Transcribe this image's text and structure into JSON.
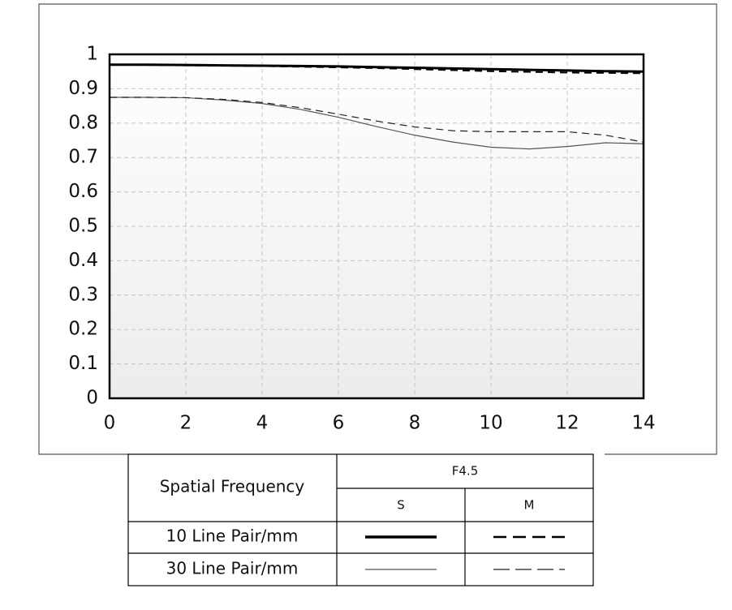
{
  "chart_data": {
    "type": "line",
    "x": [
      0,
      1,
      2,
      3,
      4,
      5,
      6,
      7,
      8,
      9,
      10,
      11,
      12,
      13,
      14
    ],
    "series": [
      {
        "color": "#000000",
        "width": 3,
        "dash": "none",
        "values": [
          0.97,
          0.97,
          0.969,
          0.968,
          0.967,
          0.966,
          0.965,
          0.963,
          0.961,
          0.959,
          0.957,
          0.955,
          0.953,
          0.951,
          0.95
        ]
      },
      {
        "color": "#000000",
        "width": 2,
        "dash": "9 6",
        "values": [
          0.97,
          0.969,
          0.968,
          0.967,
          0.966,
          0.964,
          0.962,
          0.96,
          0.957,
          0.954,
          0.951,
          0.949,
          0.947,
          0.946,
          0.945
        ]
      },
      {
        "color": "#555555",
        "width": 1.2,
        "dash": "none",
        "values": [
          0.875,
          0.875,
          0.874,
          0.867,
          0.857,
          0.84,
          0.817,
          0.79,
          0.765,
          0.745,
          0.73,
          0.725,
          0.732,
          0.743,
          0.74
        ]
      },
      {
        "color": "#222222",
        "width": 1.2,
        "dash": "9 6",
        "values": [
          0.875,
          0.875,
          0.874,
          0.869,
          0.86,
          0.845,
          0.826,
          0.806,
          0.789,
          0.778,
          0.775,
          0.775,
          0.775,
          0.765,
          0.745
        ]
      }
    ],
    "xlim": [
      0,
      14
    ],
    "xticks": [
      0,
      2,
      4,
      6,
      8,
      10,
      12,
      14
    ],
    "ylim": [
      0,
      1
    ],
    "yticks": [
      0,
      0.1,
      0.2,
      0.3,
      0.4,
      0.5,
      0.6,
      0.7,
      0.8,
      0.9,
      1
    ],
    "grid": true,
    "legend": {
      "header": "Spatial Frequency",
      "aperture": "F4.5",
      "columns": [
        "S",
        "M"
      ],
      "rows": [
        "10 Line Pair/mm",
        "30 Line Pair/mm"
      ]
    }
  }
}
